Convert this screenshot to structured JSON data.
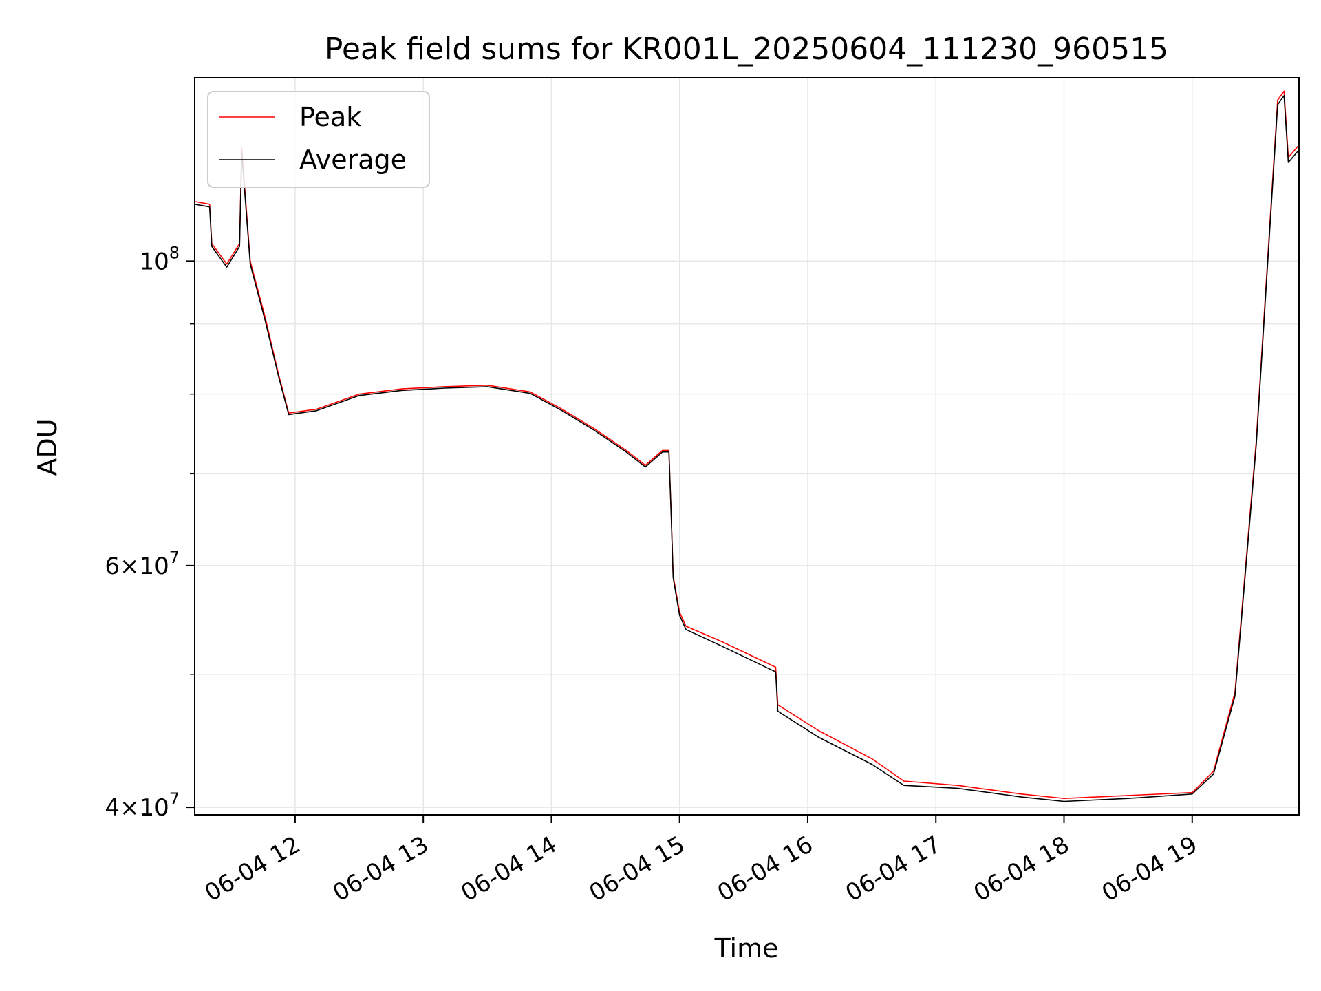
{
  "chart_data": {
    "type": "line",
    "title": "Peak field sums for KR001L_20250604_111230_960515",
    "xlabel": "Time",
    "ylabel": "ADU",
    "yscale": "log",
    "ylim": [
      39500000,
      136000000
    ],
    "xlim": [
      "2025-06-04 11:13",
      "2025-06-04 19:50"
    ],
    "grid": true,
    "legend_position": "upper-left",
    "x_ticks": [
      {
        "t": "2025-06-04 12:00",
        "label": "06-04 12"
      },
      {
        "t": "2025-06-04 13:00",
        "label": "06-04 13"
      },
      {
        "t": "2025-06-04 14:00",
        "label": "06-04 14"
      },
      {
        "t": "2025-06-04 15:00",
        "label": "06-04 15"
      },
      {
        "t": "2025-06-04 16:00",
        "label": "06-04 16"
      },
      {
        "t": "2025-06-04 17:00",
        "label": "06-04 17"
      },
      {
        "t": "2025-06-04 18:00",
        "label": "06-04 18"
      },
      {
        "t": "2025-06-04 19:00",
        "label": "06-04 19"
      }
    ],
    "y_ticks": [
      {
        "value": 40000000,
        "label_base": "4×10",
        "label_exp": "7"
      },
      {
        "value": 60000000,
        "label_base": "6×10",
        "label_exp": "7"
      },
      {
        "value": 100000000,
        "label_base": "10",
        "label_exp": "8"
      }
    ],
    "y_minor_ticks": [
      50000000,
      70000000,
      80000000,
      90000000
    ],
    "series": [
      {
        "name": "Peak",
        "color": "#ff0000",
        "x": [
          "2025-06-04 11:13",
          "2025-06-04 11:20",
          "2025-06-04 11:21",
          "2025-06-04 11:28",
          "2025-06-04 11:34",
          "2025-06-04 11:35",
          "2025-06-04 11:39",
          "2025-06-04 11:42",
          "2025-06-04 11:46",
          "2025-06-04 11:52",
          "2025-06-04 11:57",
          "2025-06-04 12:10",
          "2025-06-04 12:30",
          "2025-06-04 12:50",
          "2025-06-04 13:10",
          "2025-06-04 13:30",
          "2025-06-04 13:50",
          "2025-06-04 14:05",
          "2025-06-04 14:20",
          "2025-06-04 14:35",
          "2025-06-04 14:44",
          "2025-06-04 14:52",
          "2025-06-04 14:55",
          "2025-06-04 14:56",
          "2025-06-04 14:57",
          "2025-06-04 15:00",
          "2025-06-04 15:03",
          "2025-06-04 15:20",
          "2025-06-04 15:45",
          "2025-06-04 15:46",
          "2025-06-04 16:05",
          "2025-06-04 16:30",
          "2025-06-04 16:45",
          "2025-06-04 17:10",
          "2025-06-04 17:40",
          "2025-06-04 18:00",
          "2025-06-04 18:30",
          "2025-06-04 19:00",
          "2025-06-04 19:10",
          "2025-06-04 19:20",
          "2025-06-04 19:30",
          "2025-06-04 19:40",
          "2025-06-04 19:43",
          "2025-06-04 19:45",
          "2025-06-04 19:50"
        ],
        "values": [
          110500000,
          110000000,
          103000000,
          99500000,
          103000000,
          121000000,
          100000000,
          96000000,
          91000000,
          83000000,
          77500000,
          78000000,
          80000000,
          80700000,
          81000000,
          81200000,
          80300000,
          78000000,
          75500000,
          72800000,
          71000000,
          72800000,
          72800000,
          66000000,
          59000000,
          55500000,
          54200000,
          52800000,
          50600000,
          47500000,
          45500000,
          43400000,
          41800000,
          41500000,
          40900000,
          40600000,
          40800000,
          41000000,
          42500000,
          48500000,
          74000000,
          131000000,
          133000000,
          119000000,
          121500000
        ]
      },
      {
        "name": "Average",
        "color": "#000000",
        "x": [
          "2025-06-04 11:13",
          "2025-06-04 11:20",
          "2025-06-04 11:21",
          "2025-06-04 11:28",
          "2025-06-04 11:34",
          "2025-06-04 11:35",
          "2025-06-04 11:39",
          "2025-06-04 11:42",
          "2025-06-04 11:46",
          "2025-06-04 11:52",
          "2025-06-04 11:57",
          "2025-06-04 12:10",
          "2025-06-04 12:30",
          "2025-06-04 12:50",
          "2025-06-04 13:10",
          "2025-06-04 13:30",
          "2025-06-04 13:50",
          "2025-06-04 14:05",
          "2025-06-04 14:20",
          "2025-06-04 14:35",
          "2025-06-04 14:44",
          "2025-06-04 14:52",
          "2025-06-04 14:55",
          "2025-06-04 14:56",
          "2025-06-04 14:57",
          "2025-06-04 15:00",
          "2025-06-04 15:03",
          "2025-06-04 15:20",
          "2025-06-04 15:45",
          "2025-06-04 15:46",
          "2025-06-04 16:05",
          "2025-06-04 16:30",
          "2025-06-04 16:45",
          "2025-06-04 17:10",
          "2025-06-04 17:40",
          "2025-06-04 18:00",
          "2025-06-04 18:30",
          "2025-06-04 19:00",
          "2025-06-04 19:10",
          "2025-06-04 19:20",
          "2025-06-04 19:30",
          "2025-06-04 19:40",
          "2025-06-04 19:43",
          "2025-06-04 19:45",
          "2025-06-04 19:50"
        ],
        "values": [
          110000000,
          109500000,
          102500000,
          99000000,
          102500000,
          120000000,
          99500000,
          95500000,
          90500000,
          82700000,
          77300000,
          77800000,
          79800000,
          80500000,
          80800000,
          81000000,
          80100000,
          77800000,
          75300000,
          72600000,
          70800000,
          72600000,
          72600000,
          65800000,
          58800000,
          55200000,
          53900000,
          52400000,
          50200000,
          47000000,
          45000000,
          43000000,
          41500000,
          41300000,
          40700000,
          40400000,
          40600000,
          40900000,
          42300000,
          48200000,
          73500000,
          130000000,
          132000000,
          118000000,
          120500000
        ]
      }
    ]
  }
}
